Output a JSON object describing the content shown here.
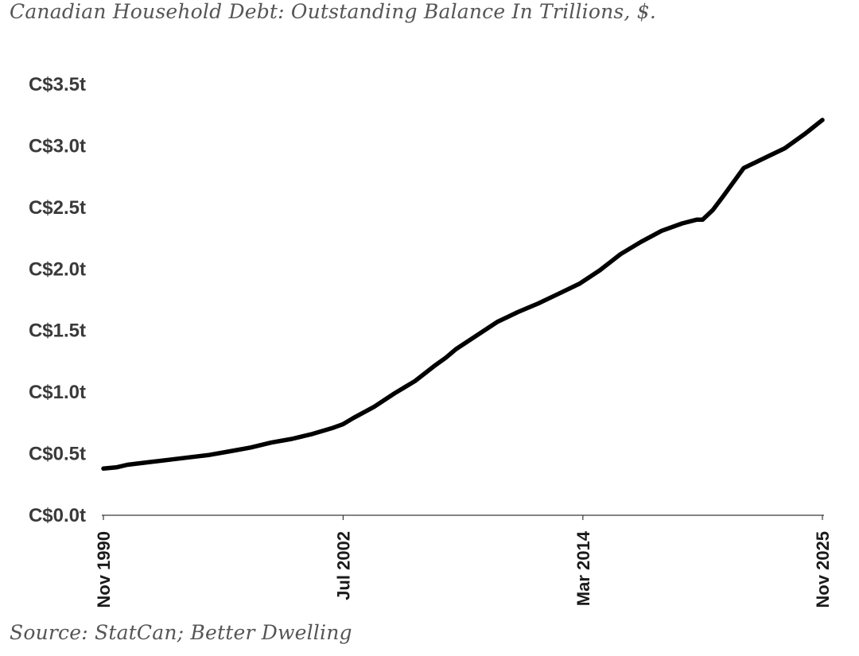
{
  "chart_data": {
    "type": "line",
    "title": "Canadian Household Debt: Outstanding Balance In Trillions, $.",
    "source": "Source: StatCan; Better Dwelling",
    "xlabel": "",
    "ylabel": "",
    "ylim": [
      0,
      3.5
    ],
    "yticks": [
      0,
      0.5,
      1.0,
      1.5,
      2.0,
      2.5,
      3.0,
      3.5
    ],
    "ytick_labels": [
      "C$0.0t",
      "C$0.5t",
      "C$1.0t",
      "C$1.5t",
      "C$2.0t",
      "C$2.5t",
      "C$3.0t",
      "C$3.5t"
    ],
    "xlim": [
      1990.83,
      2025.83
    ],
    "xticks": [
      1990.83,
      2002.5,
      2014.17,
      2025.83
    ],
    "xtick_labels": [
      "Nov 1990",
      "Jul 2002",
      "Mar 2014",
      "Nov 2025"
    ],
    "line_color": "#000000",
    "series": [
      {
        "name": "Outstanding Balance",
        "x": [
          1990.83,
          1991.5,
          1992,
          1993,
          1994,
          1995,
          1996,
          1997,
          1998,
          1999,
          2000,
          2001,
          2002,
          2002.5,
          2003,
          2004,
          2005,
          2006,
          2007,
          2007.5,
          2008,
          2009,
          2010,
          2011,
          2012,
          2013,
          2014,
          2015,
          2016,
          2017,
          2018,
          2019,
          2019.7,
          2020,
          2020.5,
          2021,
          2022,
          2022.5,
          2023,
          2024,
          2025,
          2025.83
        ],
        "values": [
          0.38,
          0.39,
          0.41,
          0.43,
          0.45,
          0.47,
          0.49,
          0.52,
          0.55,
          0.59,
          0.62,
          0.66,
          0.71,
          0.74,
          0.79,
          0.88,
          0.99,
          1.09,
          1.22,
          1.28,
          1.35,
          1.46,
          1.57,
          1.65,
          1.72,
          1.8,
          1.88,
          1.99,
          2.12,
          2.22,
          2.31,
          2.37,
          2.4,
          2.4,
          2.48,
          2.59,
          2.82,
          2.86,
          2.9,
          2.98,
          3.1,
          3.21
        ]
      }
    ]
  }
}
